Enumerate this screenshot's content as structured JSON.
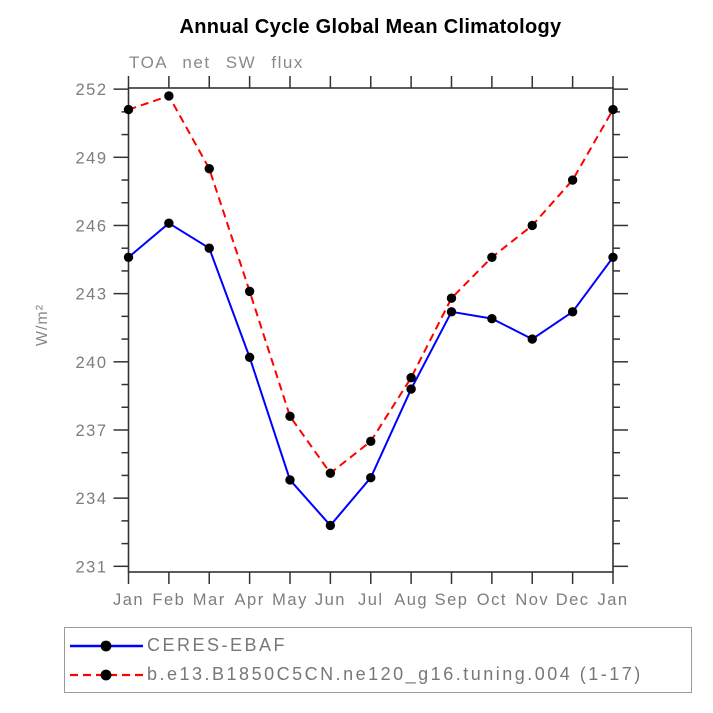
{
  "chart_data": {
    "type": "line",
    "title": "Annual Cycle Global Mean Climatology",
    "subtitle": "TOA net SW flux",
    "ylabel": "W/m²",
    "xlabel": "",
    "categories": [
      "Jan",
      "Feb",
      "Mar",
      "Apr",
      "May",
      "Jun",
      "Jul",
      "Aug",
      "Sep",
      "Oct",
      "Nov",
      "Dec",
      "Jan"
    ],
    "ylim": [
      230.75,
      252.05
    ],
    "yticks": [
      231,
      234,
      237,
      240,
      243,
      246,
      249,
      252
    ],
    "minor_tick_step": 1,
    "grid": false,
    "legend_position": "bottom",
    "axis_color": "#333333",
    "label_color": "#7d7d7d",
    "marker_color": "#000000",
    "series": [
      {
        "name": "CERES-EBAF",
        "color": "#0000ff",
        "line_style": "solid",
        "marker": "filled-circle",
        "values": [
          244.6,
          246.1,
          245.0,
          240.2,
          234.8,
          232.8,
          234.9,
          238.8,
          242.2,
          241.9,
          241.0,
          242.2,
          244.6
        ]
      },
      {
        "name": "b.e13.B1850C5CN.ne120_g16.tuning.004 (1-17)",
        "color": "#ff0000",
        "line_style": "dashed",
        "marker": "filled-circle",
        "values": [
          251.1,
          251.7,
          248.5,
          243.1,
          237.6,
          235.1,
          236.5,
          239.3,
          242.8,
          244.6,
          246.0,
          248.0,
          251.1
        ]
      }
    ]
  }
}
